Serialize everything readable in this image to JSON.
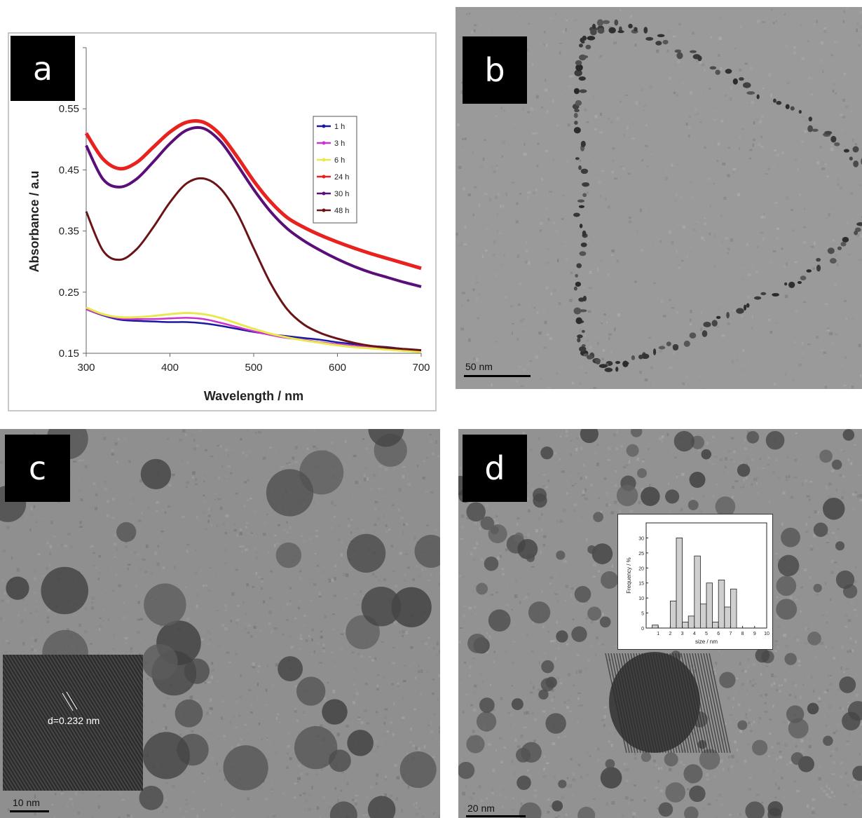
{
  "panels": {
    "a": {
      "label": "a"
    },
    "b": {
      "label": "b",
      "scale": "50 nm"
    },
    "c": {
      "label": "c",
      "scale": "10 nm",
      "inset_text": "d=0.232 nm"
    },
    "d": {
      "label": "d",
      "scale": "20 nm"
    }
  },
  "chart_data": [
    {
      "type": "line",
      "xlabel": "Wavelength / nm",
      "ylabel": "Absorbance / a.u",
      "xlim": [
        300,
        700
      ],
      "ylim": [
        0.15,
        0.65
      ],
      "xticks": [
        300,
        400,
        500,
        600,
        700
      ],
      "yticks": [
        0.15,
        0.25,
        0.35,
        0.45,
        0.55
      ],
      "legend_position": "right",
      "series": [
        {
          "name": "1 h",
          "color": "#1a1aa0",
          "x": [
            300,
            320,
            340,
            360,
            380,
            400,
            420,
            440,
            460,
            480,
            500,
            520,
            540,
            560,
            580,
            600,
            620,
            640,
            660,
            680,
            700
          ],
          "y": [
            0.222,
            0.212,
            0.205,
            0.203,
            0.202,
            0.201,
            0.201,
            0.199,
            0.195,
            0.19,
            0.185,
            0.181,
            0.178,
            0.175,
            0.172,
            0.168,
            0.165,
            0.162,
            0.16,
            0.157,
            0.155
          ]
        },
        {
          "name": "3 h",
          "color": "#cc33cc",
          "x": [
            300,
            320,
            340,
            360,
            380,
            400,
            420,
            440,
            460,
            480,
            500,
            520,
            540,
            560,
            580,
            600,
            620,
            640,
            660,
            680,
            700
          ],
          "y": [
            0.222,
            0.213,
            0.207,
            0.206,
            0.206,
            0.207,
            0.208,
            0.206,
            0.2,
            0.193,
            0.186,
            0.18,
            0.175,
            0.172,
            0.168,
            0.165,
            0.162,
            0.16,
            0.158,
            0.156,
            0.154
          ]
        },
        {
          "name": "6 h",
          "color": "#e8e850",
          "x": [
            300,
            320,
            340,
            360,
            380,
            400,
            420,
            440,
            460,
            480,
            500,
            520,
            540,
            560,
            580,
            600,
            620,
            640,
            660,
            680,
            700
          ],
          "y": [
            0.225,
            0.214,
            0.209,
            0.209,
            0.211,
            0.214,
            0.216,
            0.214,
            0.208,
            0.199,
            0.19,
            0.182,
            0.176,
            0.171,
            0.167,
            0.163,
            0.16,
            0.158,
            0.156,
            0.154,
            0.152
          ]
        },
        {
          "name": "24 h",
          "color": "#e8221e",
          "x": [
            300,
            320,
            340,
            360,
            380,
            400,
            420,
            440,
            460,
            480,
            500,
            520,
            540,
            560,
            580,
            600,
            620,
            640,
            660,
            680,
            700
          ],
          "y": [
            0.51,
            0.468,
            0.452,
            0.462,
            0.487,
            0.512,
            0.528,
            0.528,
            0.508,
            0.472,
            0.432,
            0.398,
            0.372,
            0.356,
            0.343,
            0.332,
            0.322,
            0.313,
            0.305,
            0.297,
            0.289
          ]
        },
        {
          "name": "30 h",
          "color": "#5a0f78",
          "x": [
            300,
            320,
            340,
            360,
            380,
            400,
            420,
            440,
            460,
            480,
            500,
            520,
            540,
            560,
            580,
            600,
            620,
            640,
            660,
            680,
            700
          ],
          "y": [
            0.49,
            0.435,
            0.422,
            0.435,
            0.463,
            0.493,
            0.515,
            0.518,
            0.497,
            0.459,
            0.418,
            0.382,
            0.354,
            0.334,
            0.318,
            0.304,
            0.292,
            0.282,
            0.274,
            0.266,
            0.259
          ]
        },
        {
          "name": "48 h",
          "color": "#6a1418",
          "x": [
            300,
            320,
            340,
            360,
            380,
            400,
            420,
            440,
            460,
            480,
            500,
            520,
            540,
            560,
            580,
            600,
            620,
            640,
            660,
            680,
            700
          ],
          "y": [
            0.382,
            0.318,
            0.303,
            0.32,
            0.356,
            0.397,
            0.428,
            0.436,
            0.42,
            0.38,
            0.322,
            0.265,
            0.222,
            0.197,
            0.183,
            0.174,
            0.167,
            0.162,
            0.159,
            0.157,
            0.155
          ]
        }
      ]
    },
    {
      "type": "bar",
      "xlabel": "size / nm",
      "ylabel": "Frequency / %",
      "xlim": [
        0,
        10
      ],
      "ylim": [
        0,
        35
      ],
      "xticks": [
        1,
        2,
        3,
        4,
        5,
        6,
        7,
        8,
        9,
        10
      ],
      "yticks": [
        0,
        5,
        10,
        15,
        20,
        25,
        30
      ],
      "bar_width": 0.5,
      "x": [
        0.5,
        2.0,
        2.5,
        3.0,
        3.5,
        4.0,
        4.5,
        5.0,
        5.5,
        6.0,
        6.5,
        7.0
      ],
      "values": [
        1,
        9,
        30,
        2,
        4,
        24,
        8,
        15,
        2,
        16,
        7,
        13
      ]
    }
  ]
}
